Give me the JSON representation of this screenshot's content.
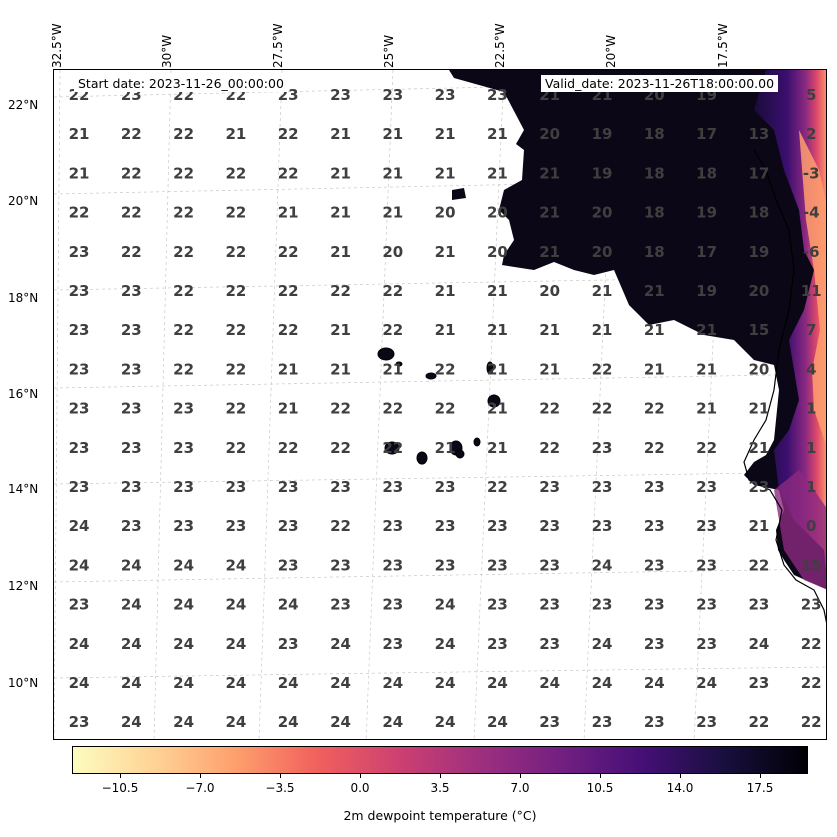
{
  "map": {
    "start_date": "Start date: 2023-11-26_00:00:00",
    "valid_date": "Valid_date: 2023-11-26T18:00:00.00",
    "longitude_labels": [
      "32.5°W",
      "30°W",
      "27.5°W",
      "25°W",
      "22.5°W",
      "20°W",
      "17.5°W"
    ],
    "latitude_labels": [
      "22°N",
      "20°N",
      "18°N",
      "16°N",
      "14°N",
      "12°N",
      "10°N"
    ],
    "grid_values": [
      [
        "22",
        "23",
        "22",
        "22",
        "23",
        "23",
        "23",
        "23",
        "23",
        "21",
        "21",
        "20",
        "19",
        "5"
      ],
      [
        "21",
        "22",
        "22",
        "21",
        "22",
        "21",
        "21",
        "21",
        "21",
        "20",
        "19",
        "18",
        "17",
        "13",
        "2"
      ],
      [
        "21",
        "22",
        "22",
        "22",
        "22",
        "21",
        "21",
        "21",
        "21",
        "21",
        "19",
        "18",
        "18",
        "17",
        "-3"
      ],
      [
        "22",
        "22",
        "22",
        "22",
        "21",
        "21",
        "21",
        "20",
        "20",
        "21",
        "20",
        "18",
        "19",
        "18",
        "-4"
      ],
      [
        "23",
        "22",
        "22",
        "22",
        "22",
        "21",
        "20",
        "21",
        "20",
        "21",
        "20",
        "18",
        "17",
        "19",
        "-6"
      ],
      [
        "23",
        "23",
        "22",
        "22",
        "22",
        "22",
        "22",
        "21",
        "21",
        "20",
        "21",
        "21",
        "19",
        "20",
        "11"
      ],
      [
        "23",
        "23",
        "22",
        "22",
        "22",
        "21",
        "22",
        "21",
        "21",
        "21",
        "21",
        "21",
        "21",
        "15",
        "7"
      ],
      [
        "23",
        "23",
        "22",
        "22",
        "21",
        "21",
        "21",
        "22",
        "21",
        "21",
        "22",
        "21",
        "21",
        "20",
        "4"
      ],
      [
        "23",
        "23",
        "23",
        "22",
        "21",
        "22",
        "22",
        "22",
        "21",
        "22",
        "22",
        "22",
        "21",
        "21",
        "1"
      ],
      [
        "23",
        "23",
        "23",
        "22",
        "22",
        "22",
        "22",
        "21",
        "21",
        "22",
        "23",
        "22",
        "22",
        "21",
        "1"
      ],
      [
        "23",
        "23",
        "23",
        "23",
        "23",
        "23",
        "23",
        "23",
        "22",
        "23",
        "23",
        "23",
        "23",
        "23",
        "1"
      ],
      [
        "24",
        "23",
        "23",
        "23",
        "23",
        "22",
        "23",
        "23",
        "23",
        "23",
        "23",
        "23",
        "23",
        "21",
        "0"
      ],
      [
        "24",
        "24",
        "24",
        "24",
        "23",
        "23",
        "23",
        "23",
        "23",
        "23",
        "24",
        "23",
        "23",
        "22",
        "15"
      ],
      [
        "23",
        "24",
        "24",
        "24",
        "24",
        "23",
        "23",
        "24",
        "23",
        "23",
        "23",
        "23",
        "23",
        "23",
        "23"
      ],
      [
        "24",
        "24",
        "24",
        "24",
        "23",
        "24",
        "23",
        "24",
        "23",
        "23",
        "24",
        "23",
        "23",
        "24",
        "22"
      ],
      [
        "24",
        "24",
        "24",
        "24",
        "24",
        "24",
        "24",
        "24",
        "24",
        "24",
        "24",
        "24",
        "24",
        "23",
        "22"
      ],
      [
        "23",
        "24",
        "24",
        "24",
        "24",
        "24",
        "24",
        "24",
        "24",
        "23",
        "23",
        "23",
        "23",
        "22",
        "22"
      ]
    ],
    "land_color": "#0b0716",
    "coast_color": "#000000"
  },
  "colorbar": {
    "title": "2m dewpoint temperature ($^\\circ$C)",
    "tick_labels": [
      "−10.5",
      "−7.0",
      "−3.5",
      "0.0",
      "3.5",
      "7.0",
      "10.5",
      "14.0",
      "17.5"
    ],
    "range": [
      -12.6,
      19.6
    ],
    "colors": [
      "#fcfdbf",
      "#fed395",
      "#fe9f6d",
      "#f1605d",
      "#cd4071",
      "#9e2f7f",
      "#721f81",
      "#440f76",
      "#180f3d",
      "#000004"
    ]
  }
}
